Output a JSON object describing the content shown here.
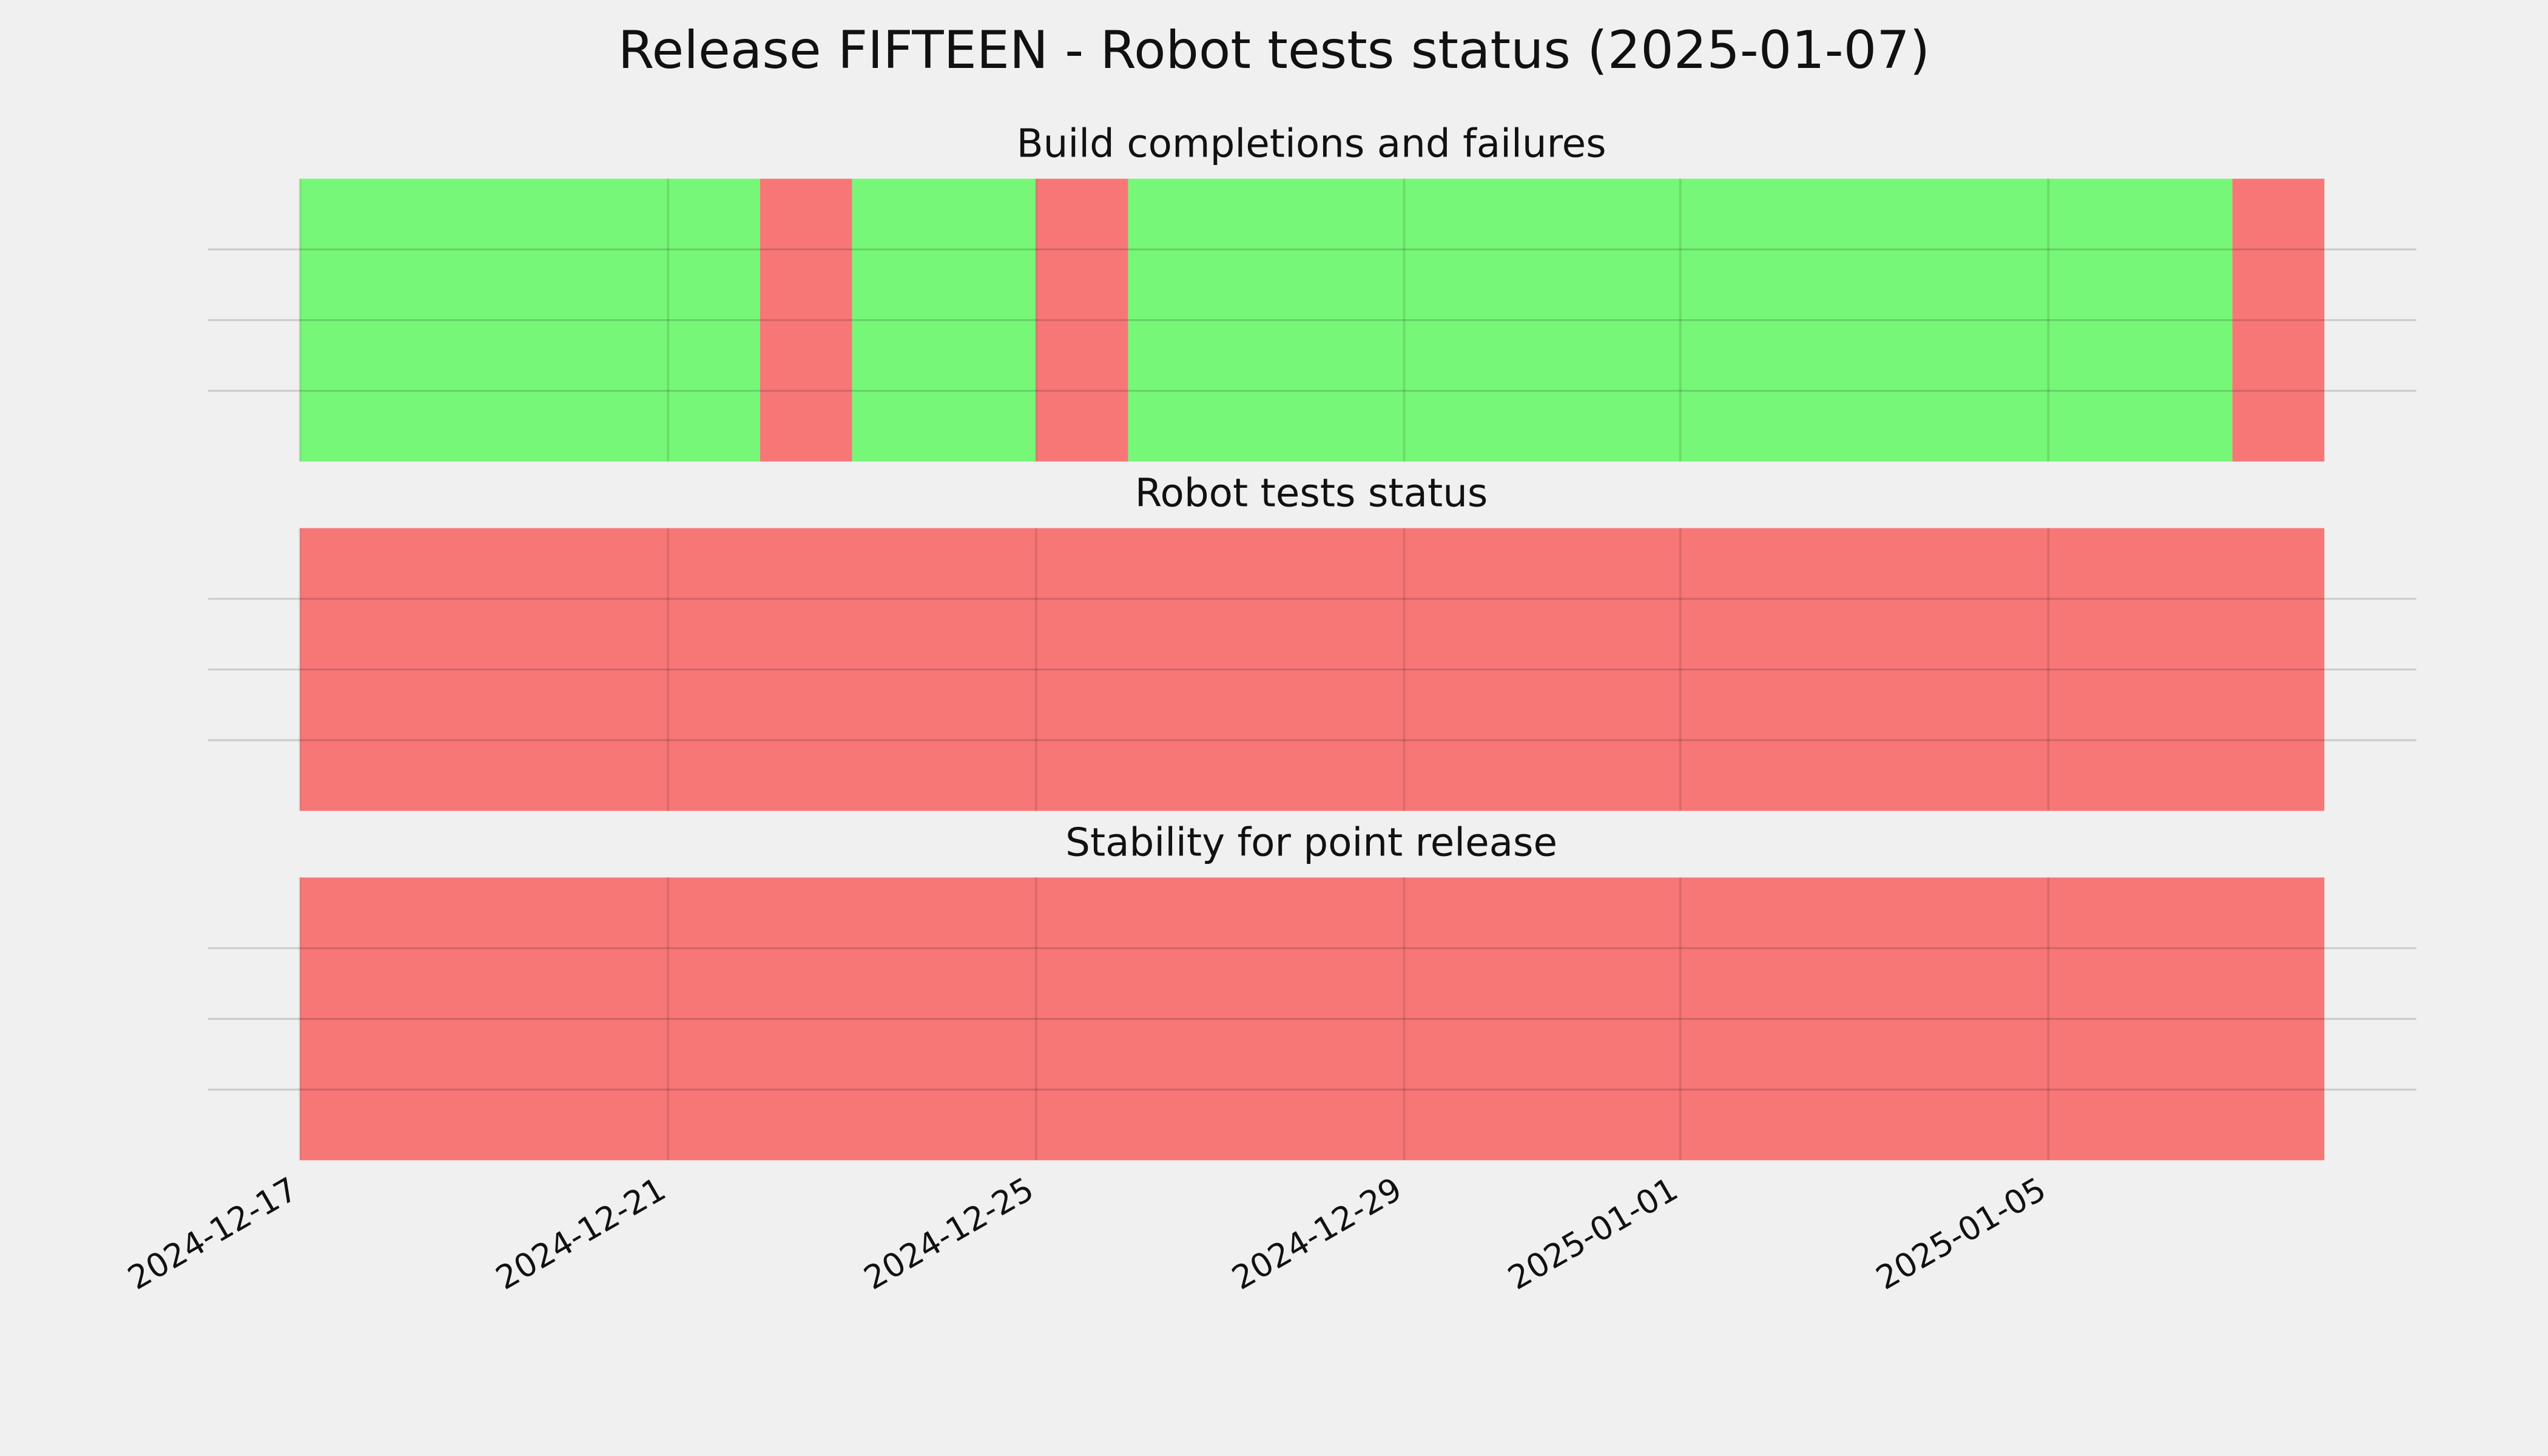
{
  "chart_data": {
    "type": "timeline",
    "title": "Release FIFTEEN - Robot tests status (2025-01-07)",
    "xlim": [
      "2024-12-16",
      "2025-01-09"
    ],
    "xticks": [
      "2024-12-17",
      "2024-12-21",
      "2024-12-25",
      "2024-12-29",
      "2025-01-01",
      "2025-01-05"
    ],
    "ylim": [
      0,
      1
    ],
    "yticks": [
      0.25,
      0.5,
      0.75
    ],
    "show_ytick_labels": false,
    "grid": true,
    "status_colors": {
      "pass": "#77f777",
      "fail": "#f77777"
    },
    "panels": [
      {
        "title": "Build completions and failures",
        "segments": [
          {
            "start": "2024-12-17",
            "end": "2024-12-22",
            "status": "pass"
          },
          {
            "start": "2024-12-22",
            "end": "2024-12-23",
            "status": "fail"
          },
          {
            "start": "2024-12-23",
            "end": "2024-12-25",
            "status": "pass"
          },
          {
            "start": "2024-12-25",
            "end": "2024-12-26",
            "status": "fail"
          },
          {
            "start": "2024-12-26",
            "end": "2025-01-07",
            "status": "pass"
          },
          {
            "start": "2025-01-07",
            "end": "2025-01-08",
            "status": "fail"
          }
        ]
      },
      {
        "title": "Robot tests status",
        "segments": [
          {
            "start": "2024-12-17",
            "end": "2025-01-08",
            "status": "fail"
          }
        ]
      },
      {
        "title": "Stability for point release",
        "segments": [
          {
            "start": "2024-12-17",
            "end": "2025-01-08",
            "status": "fail"
          }
        ]
      }
    ]
  }
}
